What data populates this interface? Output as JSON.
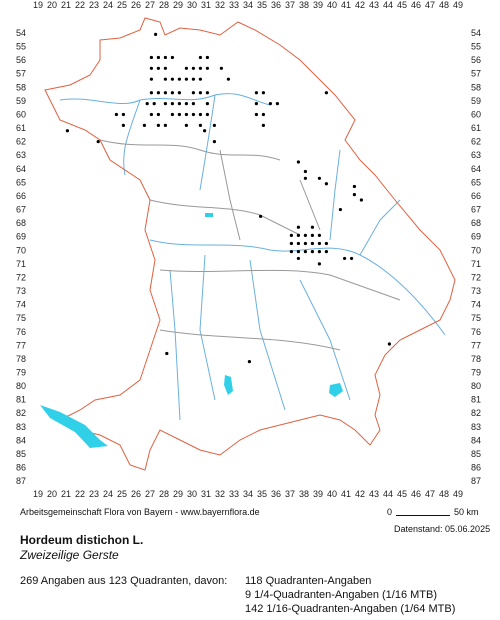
{
  "map": {
    "columns": [
      19,
      20,
      21,
      22,
      23,
      24,
      25,
      26,
      27,
      28,
      29,
      30,
      31,
      32,
      33,
      34,
      35,
      36,
      37,
      38,
      39,
      40,
      41,
      42,
      43,
      44,
      45,
      46,
      47,
      48,
      49
    ],
    "rows": [
      54,
      55,
      56,
      57,
      58,
      59,
      60,
      61,
      62,
      63,
      64,
      65,
      66,
      67,
      68,
      69,
      70,
      71,
      72,
      73,
      74,
      75,
      76,
      77,
      78,
      79,
      80,
      81,
      82,
      83,
      84,
      85,
      86,
      87
    ],
    "dots": [
      [
        27.4,
        54.1
      ],
      [
        27.1,
        55.8
      ],
      [
        27.6,
        55.8
      ],
      [
        28.1,
        55.8
      ],
      [
        28.6,
        55.8
      ],
      [
        30.6,
        55.8
      ],
      [
        31.1,
        55.8
      ],
      [
        27.1,
        56.6
      ],
      [
        27.6,
        56.6
      ],
      [
        28.1,
        56.6
      ],
      [
        29.6,
        56.6
      ],
      [
        30.1,
        56.6
      ],
      [
        30.6,
        56.6
      ],
      [
        31.1,
        56.6
      ],
      [
        32.1,
        56.6
      ],
      [
        27.1,
        57.4
      ],
      [
        28.1,
        57.4
      ],
      [
        28.6,
        57.4
      ],
      [
        29.1,
        57.4
      ],
      [
        29.6,
        57.4
      ],
      [
        30.1,
        57.4
      ],
      [
        30.6,
        57.4
      ],
      [
        32.6,
        57.4
      ],
      [
        27.1,
        58.4
      ],
      [
        27.6,
        58.4
      ],
      [
        28.1,
        58.4
      ],
      [
        28.6,
        58.4
      ],
      [
        29.1,
        58.4
      ],
      [
        30.1,
        58.4
      ],
      [
        30.6,
        58.4
      ],
      [
        31.1,
        58.4
      ],
      [
        34.6,
        58.4
      ],
      [
        35.1,
        58.4
      ],
      [
        39.6,
        58.4
      ],
      [
        26.8,
        59.2
      ],
      [
        27.3,
        59.2
      ],
      [
        28.1,
        59.2
      ],
      [
        28.6,
        59.2
      ],
      [
        29.1,
        59.2
      ],
      [
        29.6,
        59.2
      ],
      [
        30.1,
        59.2
      ],
      [
        31.1,
        59.2
      ],
      [
        34.6,
        59.2
      ],
      [
        35.6,
        59.2
      ],
      [
        36.1,
        59.2
      ],
      [
        24.6,
        60.0
      ],
      [
        25.1,
        60.0
      ],
      [
        27.1,
        60.0
      ],
      [
        27.6,
        60.0
      ],
      [
        28.6,
        60.0
      ],
      [
        29.1,
        60.0
      ],
      [
        29.6,
        60.0
      ],
      [
        30.1,
        60.0
      ],
      [
        30.6,
        60.0
      ],
      [
        31.1,
        60.0
      ],
      [
        34.6,
        60.0
      ],
      [
        35.1,
        60.0
      ],
      [
        25.1,
        60.8
      ],
      [
        26.6,
        60.8
      ],
      [
        27.6,
        60.8
      ],
      [
        28.1,
        60.8
      ],
      [
        29.6,
        60.8
      ],
      [
        30.6,
        60.8
      ],
      [
        31.6,
        60.8
      ],
      [
        35.1,
        60.8
      ],
      [
        21.1,
        61.2
      ],
      [
        30.9,
        61.2
      ],
      [
        23.3,
        62.0
      ],
      [
        31.6,
        62.0
      ],
      [
        37.6,
        63.5
      ],
      [
        38.1,
        64.2
      ],
      [
        38.1,
        64.7
      ],
      [
        39.1,
        64.7
      ],
      [
        39.6,
        65.1
      ],
      [
        41.6,
        65.3
      ],
      [
        41.6,
        65.9
      ],
      [
        42.1,
        66.3
      ],
      [
        40.6,
        67.0
      ],
      [
        34.9,
        67.5
      ],
      [
        37.6,
        68.3
      ],
      [
        38.6,
        68.3
      ],
      [
        37.1,
        68.9
      ],
      [
        37.6,
        68.9
      ],
      [
        38.1,
        68.9
      ],
      [
        38.6,
        68.9
      ],
      [
        39.1,
        68.9
      ],
      [
        37.1,
        69.5
      ],
      [
        37.6,
        69.5
      ],
      [
        38.1,
        69.5
      ],
      [
        38.6,
        69.5
      ],
      [
        39.1,
        69.5
      ],
      [
        39.6,
        69.5
      ],
      [
        37.1,
        70.1
      ],
      [
        37.6,
        70.1
      ],
      [
        38.1,
        70.1
      ],
      [
        38.6,
        70.1
      ],
      [
        39.1,
        70.1
      ],
      [
        39.6,
        70.1
      ],
      [
        37.6,
        70.6
      ],
      [
        40.9,
        70.6
      ],
      [
        41.4,
        70.6
      ],
      [
        39.1,
        71.0
      ],
      [
        44.1,
        76.9
      ],
      [
        28.2,
        77.6
      ],
      [
        34.1,
        78.2
      ]
    ]
  },
  "footer": {
    "credit": "Arbeitsgemeinschaft Flora von Bayern - www.bayernflora.de",
    "scale_start": "0",
    "scale_end": "50 km",
    "date": "Datenstand: 05.06.2025"
  },
  "species": {
    "name": "Hordeum distichon L.",
    "common_name": "Zweizeilige Gerste"
  },
  "stats": {
    "summary": "269 Angaben aus 123 Quadranten, davon:",
    "lines": [
      "118 Quadranten-Angaben",
      "9 1/4-Quadranten-Angaben (1/16 MTB)",
      "142 1/16-Quadranten-Angaben (1/64 MTB)"
    ]
  }
}
